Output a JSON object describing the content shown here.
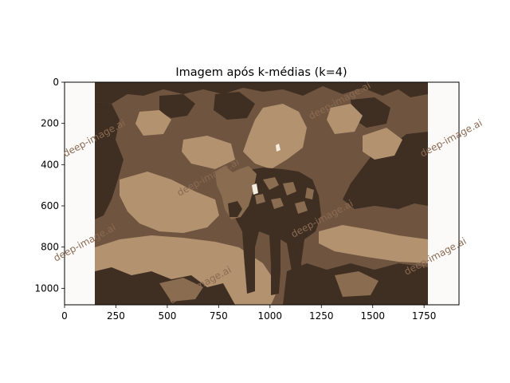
{
  "chart_data": {
    "type": "image",
    "title": "Imagem após k-médias (k=4)",
    "xlim": [
      0,
      1920
    ],
    "ylim": [
      1080,
      0
    ],
    "xticks": [
      0,
      250,
      500,
      750,
      1000,
      1250,
      1500,
      1750
    ],
    "yticks": [
      0,
      200,
      400,
      600,
      800,
      1000
    ],
    "xtick_labels": [
      "0",
      "250",
      "500",
      "750",
      "1000",
      "1250",
      "1500",
      "1750"
    ],
    "ytick_labels": [
      "0",
      "200",
      "400",
      "600",
      "800",
      "1000"
    ],
    "grid": false,
    "legend": "none",
    "image": {
      "subject": "spotted hyena on ground, posterized into 4 colour clusters",
      "content_x_range": [
        145,
        1770
      ],
      "palette": [
        "#3f2f22",
        "#6f5540",
        "#b3926f",
        "#8a6c50"
      ],
      "margin_color": "#fbfaf8",
      "watermark": "deep-image.ai",
      "watermark_color": "#8a6a52"
    }
  }
}
